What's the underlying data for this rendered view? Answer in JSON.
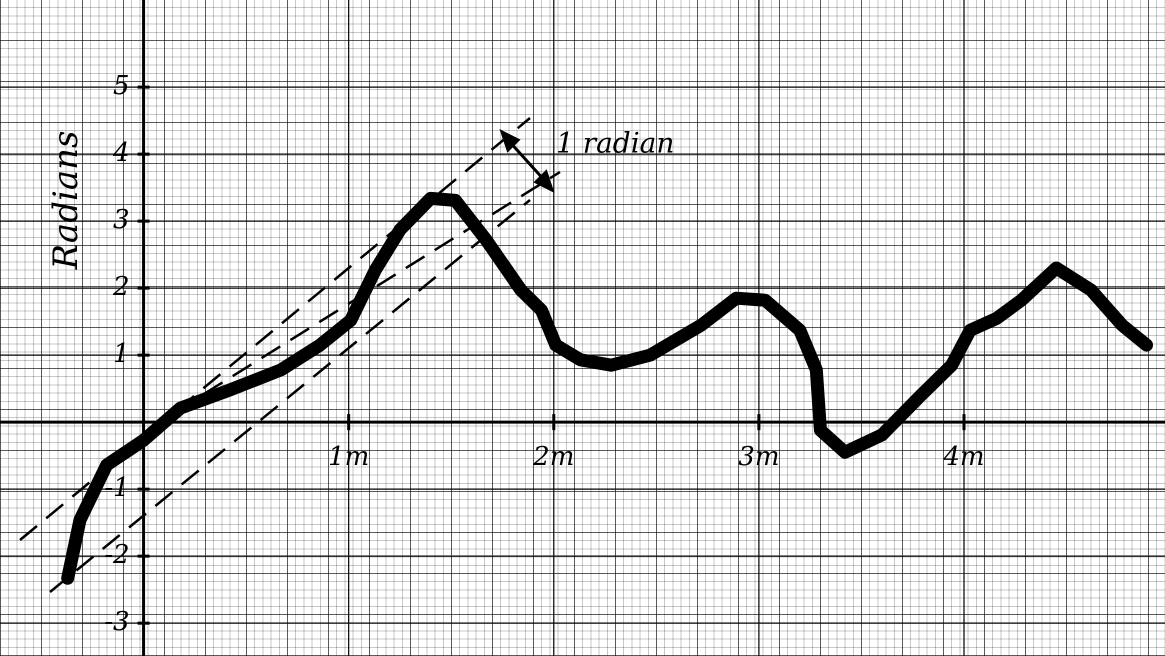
{
  "chart_data": {
    "type": "line",
    "y_label": "Radians",
    "annotation": "1 radian",
    "x": [
      -0.37,
      -0.31,
      -0.18,
      0,
      0.18,
      0.42,
      0.67,
      0.86,
      1.01,
      1.13,
      1.25,
      1.4,
      1.52,
      1.67,
      1.84,
      1.94,
      2.01,
      2.13,
      2.28,
      2.47,
      2.72,
      2.89,
      3.03,
      3.2,
      3.28,
      3.3,
      3.42,
      3.6,
      3.79,
      3.94,
      4.03,
      4.16,
      4.28,
      4.45,
      4.62,
      4.77,
      4.89
    ],
    "values": [
      -2.33,
      -1.46,
      -0.64,
      -0.27,
      0.21,
      0.48,
      0.78,
      1.15,
      1.52,
      2.27,
      2.87,
      3.34,
      3.31,
      2.72,
      1.97,
      1.67,
      1.15,
      0.93,
      0.85,
      1.0,
      1.45,
      1.85,
      1.82,
      1.37,
      0.78,
      -0.12,
      -0.45,
      -0.19,
      0.4,
      0.85,
      1.37,
      1.55,
      1.82,
      2.3,
      1.97,
      1.45,
      1.15
    ],
    "color": "#000000",
    "xlim": [
      -0.7,
      4.98
    ],
    "ylim": [
      -3.49,
      6.3
    ],
    "xticks": [
      {
        "value": 1,
        "label": "1m"
      },
      {
        "value": 2,
        "label": "2m"
      },
      {
        "value": 3,
        "label": "3m"
      },
      {
        "value": 4,
        "label": "4m"
      }
    ],
    "yticks": [
      5,
      4,
      3,
      2,
      1,
      -1,
      -2,
      -3
    ],
    "grid": true
  }
}
